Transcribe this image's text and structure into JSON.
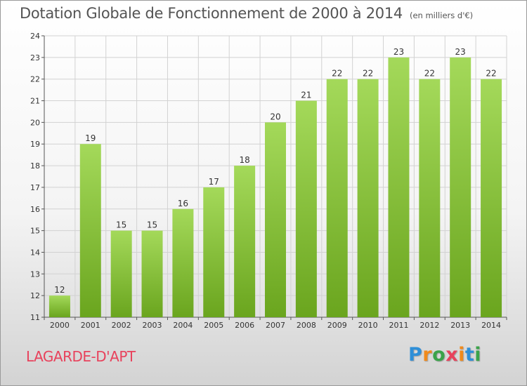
{
  "chart_data": {
    "type": "bar",
    "title": "Dotation Globale de Fonctionnement de 2000 à 2014",
    "subtitle": "(en milliers d'€)",
    "categories": [
      "2000",
      "2001",
      "2002",
      "2003",
      "2004",
      "2005",
      "2006",
      "2007",
      "2008",
      "2009",
      "2010",
      "2011",
      "2012",
      "2013",
      "2014"
    ],
    "values": [
      12,
      19,
      15,
      15,
      16,
      17,
      18,
      20,
      21,
      22,
      22,
      23,
      22,
      23,
      22
    ],
    "ylim": [
      11,
      24
    ],
    "yticks": [
      11,
      12,
      13,
      14,
      15,
      16,
      17,
      18,
      19,
      20,
      21,
      22,
      23,
      24
    ],
    "grid": true,
    "bar_color": "#8cc63f",
    "xlabel": "",
    "ylabel": ""
  },
  "commune_name": "LAGARDE-D'APT",
  "logo": {
    "letters": [
      "P",
      "r",
      "o",
      "x",
      "i",
      "t",
      "i"
    ],
    "colors": [
      "#2e8fd8",
      "#f08a1c",
      "#3ba34a",
      "#e8425c",
      "#f08a1c",
      "#2e8fd8",
      "#3ba34a"
    ]
  }
}
